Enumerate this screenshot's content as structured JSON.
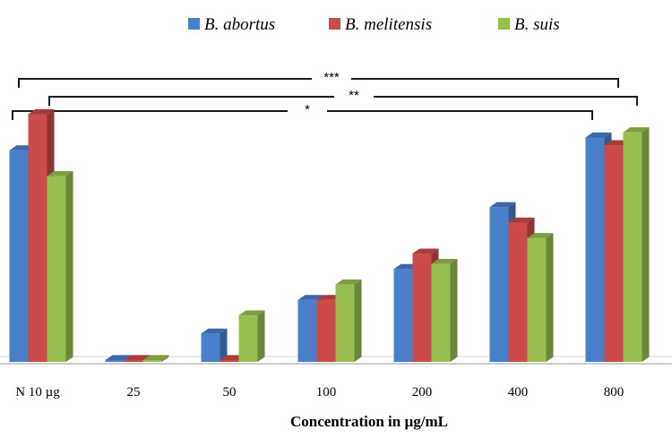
{
  "chart_data": {
    "type": "bar",
    "categories": [
      "N 10 µg",
      "25",
      "50",
      "100",
      "200",
      "400",
      "800"
    ],
    "series": [
      {
        "name": "B. abortus",
        "color": "#4a7fcc",
        "values": [
          82,
          0,
          11,
          24,
          36,
          60,
          87
        ]
      },
      {
        "name": "B. melitensis",
        "color": "#cc4a47",
        "values": [
          96,
          0,
          0,
          24,
          42,
          54,
          84
        ]
      },
      {
        "name": "B. suis",
        "color": "#97bf4f",
        "values": [
          72,
          0,
          18,
          30,
          38,
          48,
          89
        ]
      }
    ],
    "xlabel": "Concentration in µg/mL",
    "ylabel": "",
    "ylim": [
      0,
      100
    ],
    "legend": "top",
    "grid": false,
    "annotations": [
      {
        "from": "N 10 µg",
        "to": "800",
        "label": "***"
      },
      {
        "from": "N 10 µg",
        "to": "800",
        "label": "**"
      },
      {
        "from": "N 10 µg",
        "to": "800",
        "label": "*"
      }
    ]
  }
}
